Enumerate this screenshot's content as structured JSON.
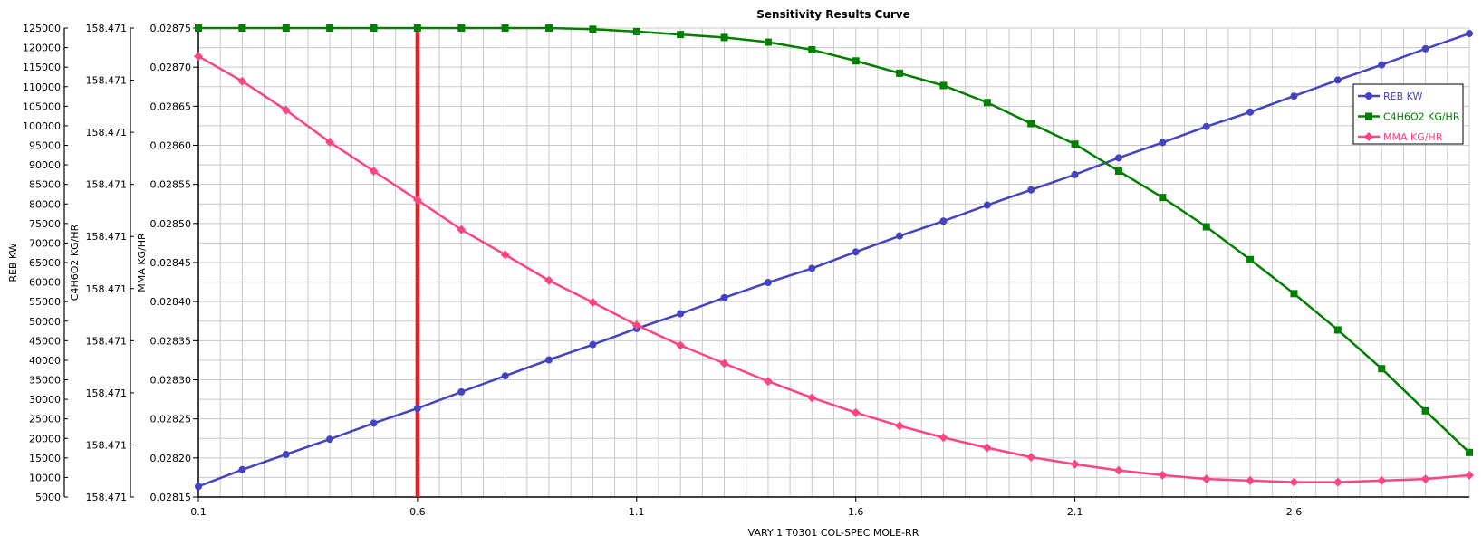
{
  "chart_data": {
    "type": "line",
    "title": "Sensitivity Results Curve",
    "xlabel": "VARY   1 T0301 COL-SPEC MOLE-RR",
    "xlim": [
      0.1,
      3.0
    ],
    "x_ticks": [
      "0.1",
      "0.6",
      "1.1",
      "1.6",
      "2.1",
      "2.6"
    ],
    "x": [
      0.1,
      0.2,
      0.3,
      0.4,
      0.5,
      0.6,
      0.7,
      0.8,
      0.9,
      1.0,
      1.1,
      1.2,
      1.3,
      1.4,
      1.5,
      1.6,
      1.7,
      1.8,
      1.9,
      2.0,
      2.1,
      2.2,
      2.3,
      2.4,
      2.5,
      2.6,
      2.7,
      2.8,
      2.9,
      3.0
    ],
    "grid": true,
    "legend_position": "top-right",
    "marker_line_x": 0.6,
    "marker_line_color": "#ed1c24",
    "axes": [
      {
        "id": "reb",
        "label": "REB KW",
        "ylim": [
          5000,
          125000
        ],
        "ticks": [
          "125000",
          "120000",
          "115000",
          "110000",
          "105000",
          "100000",
          "95000",
          "90000",
          "85000",
          "80000",
          "75000",
          "70000",
          "65000",
          "60000",
          "55000",
          "50000",
          "45000",
          "40000",
          "35000",
          "30000",
          "25000",
          "20000",
          "15000",
          "10000",
          "5000"
        ]
      },
      {
        "id": "c4",
        "label": "C4H6O2 KG/HR",
        "ylim": [
          158.4706,
          158.4714
        ],
        "ticks": [
          "158.471",
          "158.471",
          "158.471",
          "158.471",
          "158.471",
          "158.471",
          "158.471",
          "158.471",
          "158.471",
          "158.471"
        ]
      },
      {
        "id": "mma",
        "label": "MMA KG/HR",
        "ylim": [
          0.02815,
          0.02875
        ],
        "ticks": [
          "0.02875",
          "0.02870",
          "0.02865",
          "0.02860",
          "0.02855",
          "0.02850",
          "0.02845",
          "0.02840",
          "0.02835",
          "0.02830",
          "0.02825",
          "0.02820",
          "0.02815"
        ]
      }
    ],
    "series": [
      {
        "name": "REB KW",
        "axis": "reb",
        "color": "#4343c3",
        "marker": "circle",
        "values": [
          7700,
          12000,
          15900,
          19800,
          23900,
          27700,
          31900,
          36000,
          40100,
          44000,
          48100,
          51900,
          56000,
          59900,
          63500,
          67700,
          71800,
          75600,
          79700,
          83600,
          87500,
          91800,
          95700,
          99800,
          103500,
          107600,
          111700,
          115600,
          119700,
          123600
        ]
      },
      {
        "name": "C4H6O2 KG/HR",
        "axis": "c4",
        "color": "#008000",
        "marker": "square",
        "values": [
          158.4714,
          158.4714,
          158.4714,
          158.4714,
          158.4714,
          158.4714,
          158.4714,
          158.4714,
          158.4714,
          158.471398,
          158.471394,
          158.471389,
          158.471384,
          158.471376,
          158.471363,
          158.471344,
          158.471323,
          158.471302,
          158.471273,
          158.471237,
          158.471202,
          158.471156,
          158.471111,
          158.471061,
          158.471005,
          158.470947,
          158.470885,
          158.470819,
          158.470747,
          158.470676
        ]
      },
      {
        "name": "MMA KG/HR",
        "axis": "mma",
        "color": "#ff4484",
        "marker": "diamond",
        "values": [
          0.028714,
          0.028682,
          0.028645,
          0.028604,
          0.028567,
          0.02853,
          0.028492,
          0.02846,
          0.028427,
          0.028399,
          0.02837,
          0.028344,
          0.028321,
          0.028298,
          0.028277,
          0.028258,
          0.028241,
          0.028226,
          0.028213,
          0.028201,
          0.028192,
          0.028184,
          0.028178,
          0.028173,
          0.028171,
          0.028169,
          0.028169,
          0.028171,
          0.028173,
          0.028178
        ]
      }
    ]
  }
}
